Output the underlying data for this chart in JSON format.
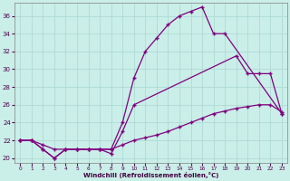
{
  "xlabel": "Windchill (Refroidissement éolien,°C)",
  "bg_color": "#caeee8",
  "line_color": "#800080",
  "grid_color": "#a8d8d0",
  "x_ticks": [
    0,
    1,
    2,
    3,
    4,
    5,
    6,
    7,
    8,
    9,
    10,
    11,
    12,
    13,
    14,
    15,
    16,
    17,
    18,
    19,
    20,
    21,
    22,
    23
  ],
  "y_ticks": [
    20,
    22,
    24,
    26,
    28,
    30,
    32,
    34,
    36
  ],
  "xlim": [
    -0.5,
    23.5
  ],
  "ylim": [
    19.5,
    37.5
  ],
  "series": [
    {
      "x": [
        0,
        1,
        2,
        3,
        4,
        5,
        6,
        7,
        8,
        9,
        10,
        11,
        12,
        13,
        14,
        15,
        16,
        17,
        18,
        23
      ],
      "y": [
        22,
        22,
        21,
        20,
        21,
        21,
        21,
        21,
        21,
        24,
        29,
        32,
        33.5,
        35,
        36,
        36.5,
        37,
        34,
        34,
        25
      ]
    },
    {
      "x": [
        0,
        1,
        2,
        3,
        4,
        5,
        6,
        7,
        8,
        9,
        10,
        19,
        20,
        21,
        22,
        23
      ],
      "y": [
        22,
        22,
        21,
        20,
        21,
        21,
        21,
        21,
        20.5,
        23,
        26,
        31.5,
        29.5,
        29.5,
        29.5,
        25
      ]
    },
    {
      "x": [
        0,
        1,
        2,
        3,
        4,
        5,
        6,
        7,
        8,
        9,
        10,
        11,
        12,
        13,
        14,
        15,
        16,
        17,
        18,
        19,
        20,
        21,
        22,
        23
      ],
      "y": [
        22,
        22,
        21.5,
        21,
        21,
        21,
        21,
        21,
        21,
        21.5,
        22,
        22.3,
        22.6,
        23,
        23.5,
        24,
        24.5,
        25,
        25.3,
        25.6,
        25.8,
        26,
        26,
        25.2
      ]
    }
  ]
}
